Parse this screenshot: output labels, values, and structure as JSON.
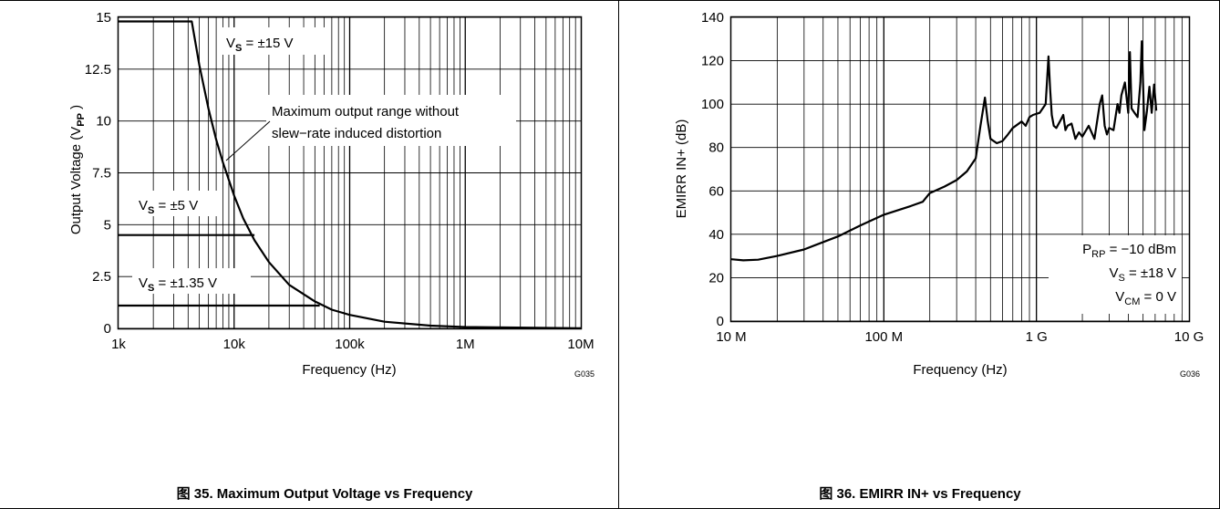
{
  "chart_data": [
    {
      "type": "line",
      "caption": "图 35. Maximum Output Voltage vs Frequency",
      "xlabel": "Frequency (Hz)",
      "ylabel": "Output Voltage (V",
      "ylabel_sub": "PP",
      "ylabel_end": " )",
      "figure_code": "G035",
      "x_scale": "log",
      "xlim": [
        1000,
        10000000
      ],
      "ylim": [
        0,
        15
      ],
      "x_ticks": [
        {
          "value": 1000,
          "label": "1k"
        },
        {
          "value": 10000,
          "label": "10k"
        },
        {
          "value": 100000,
          "label": "100k"
        },
        {
          "value": 1000000,
          "label": "1M"
        },
        {
          "value": 10000000,
          "label": "10M"
        }
      ],
      "y_ticks": [
        {
          "value": 0,
          "label": "0"
        },
        {
          "value": 2.5,
          "label": "2.5"
        },
        {
          "value": 5,
          "label": "5"
        },
        {
          "value": 7.5,
          "label": "7.5"
        },
        {
          "value": 10,
          "label": "10"
        },
        {
          "value": 12.5,
          "label": "12.5"
        },
        {
          "value": 15,
          "label": "15"
        }
      ],
      "grid": true,
      "series": [
        {
          "x": [
            1000,
            4300,
            5000,
            6000,
            7000,
            8000,
            10000,
            12000,
            15000,
            20000,
            30000,
            50000,
            70000,
            100000,
            200000,
            500000,
            1000000,
            10000000
          ],
          "y": [
            14.8,
            14.8,
            12.7,
            10.6,
            9.1,
            8.0,
            6.4,
            5.3,
            4.25,
            3.2,
            2.1,
            1.3,
            0.9,
            0.65,
            0.32,
            0.13,
            0.065,
            0.01
          ]
        },
        {
          "x": [
            1000,
            15000
          ],
          "y": [
            4.5,
            4.5
          ]
        },
        {
          "x": [
            1000,
            55000
          ],
          "y": [
            1.1,
            1.1
          ]
        }
      ],
      "annotations": [
        {
          "text": "V",
          "sub": "S",
          "rest": " = ±15 V"
        },
        {
          "text": "Maximum output range without"
        },
        {
          "text": "slew−rate induced distortion"
        },
        {
          "text": "V",
          "sub": "S",
          "rest": " = ±5 V"
        },
        {
          "text": "V",
          "sub": "S",
          "rest": " = ±1.35 V"
        }
      ]
    },
    {
      "type": "line",
      "caption": "图 36. EMIRR IN+ vs Frequency",
      "xlabel": "Frequency (Hz)",
      "ylabel": "EMIRR IN+ (dB)",
      "figure_code": "G036",
      "x_scale": "log",
      "xlim": [
        10000000,
        10000000000
      ],
      "ylim": [
        0,
        140
      ],
      "x_ticks": [
        {
          "value": 10000000,
          "label": "10 M"
        },
        {
          "value": 100000000,
          "label": "100 M"
        },
        {
          "value": 1000000000,
          "label": "1 G"
        },
        {
          "value": 10000000000,
          "label": "10 G"
        }
      ],
      "y_ticks": [
        {
          "value": 0,
          "label": "0"
        },
        {
          "value": 20,
          "label": "20"
        },
        {
          "value": 40,
          "label": "40"
        },
        {
          "value": 60,
          "label": "60"
        },
        {
          "value": 80,
          "label": "80"
        },
        {
          "value": 100,
          "label": "100"
        },
        {
          "value": 120,
          "label": "120"
        },
        {
          "value": 140,
          "label": "140"
        }
      ],
      "grid": true,
      "series": [
        {
          "x": [
            10000000,
            12000000,
            15000000,
            20000000,
            30000000,
            50000000,
            70000000,
            100000000,
            150000000,
            180000000,
            200000000,
            250000000,
            300000000,
            350000000,
            400000000,
            430000000,
            460000000,
            480000000,
            500000000,
            550000000,
            600000000,
            650000000,
            700000000,
            800000000,
            850000000,
            900000000,
            950000000,
            1050000000,
            1150000000,
            1200000000,
            1230000000,
            1260000000,
            1300000000,
            1350000000,
            1450000000,
            1500000000,
            1550000000,
            1600000000,
            1700000000,
            1800000000,
            1900000000,
            2000000000,
            2200000000,
            2400000000,
            2600000000,
            2700000000,
            2800000000,
            2900000000,
            3000000000,
            3200000000,
            3400000000,
            3500000000,
            3600000000,
            3800000000,
            4000000000,
            4100000000,
            4200000000,
            4400000000,
            4600000000,
            4800000000,
            4900000000,
            5000000000,
            5100000000,
            5300000000,
            5500000000,
            5700000000,
            5900000000,
            6100000000
          ],
          "y": [
            28.5,
            28,
            28.3,
            30,
            33,
            39,
            44,
            49,
            53,
            55,
            59,
            62,
            65,
            69,
            75,
            90,
            103,
            92,
            84,
            82,
            83,
            86,
            89,
            92,
            90,
            94,
            95,
            96,
            100,
            122,
            107,
            95,
            90,
            89,
            93,
            95,
            88,
            90,
            91,
            84,
            87,
            85,
            90,
            84,
            100,
            104,
            90,
            86,
            89,
            88,
            100,
            96,
            104,
            110,
            96,
            124,
            98,
            96,
            94,
            110,
            129,
            110,
            88,
            97,
            108,
            96,
            109,
            97
          ]
        }
      ],
      "annotations": [
        {
          "text": "P",
          "sub": "RP",
          "rest": " = −10 dBm"
        },
        {
          "text": "V",
          "sub": "S",
          "rest": " = ±18 V"
        },
        {
          "text": "V",
          "sub": "CM",
          "rest": " = 0 V"
        }
      ]
    }
  ]
}
